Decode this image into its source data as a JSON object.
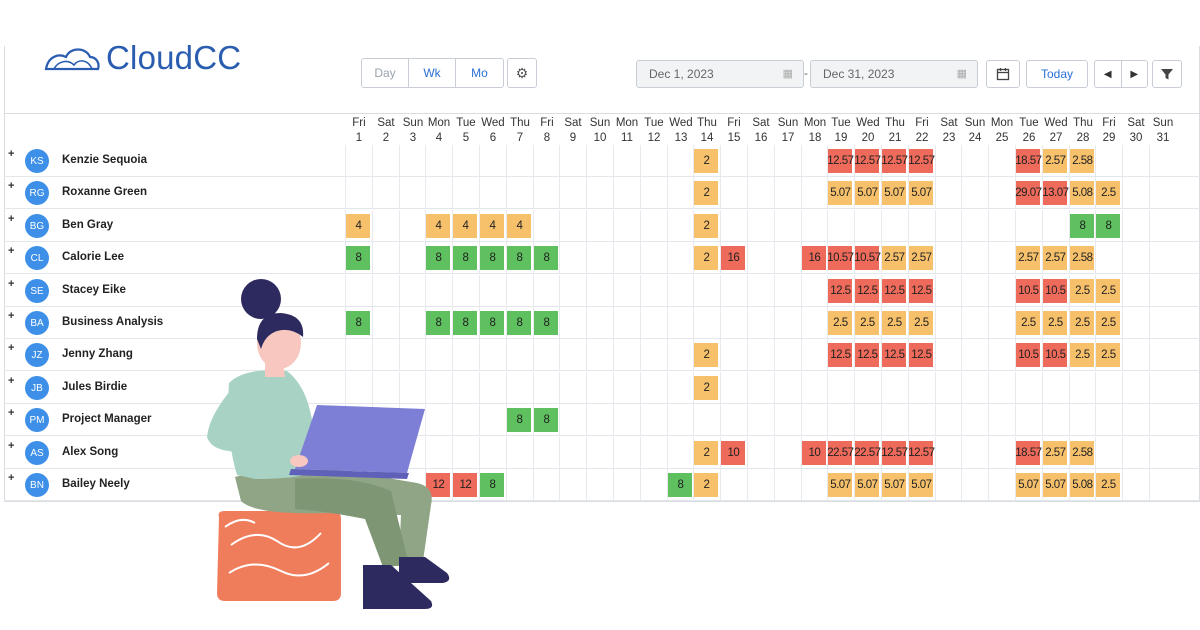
{
  "brand": {
    "name": "CloudCC",
    "color": "#2a5db0",
    "icon": "cloud-logo-icon"
  },
  "views": [
    {
      "label": "Day",
      "active": false
    },
    {
      "label": "Wk",
      "active": true
    },
    {
      "label": "Mo",
      "active": true
    }
  ],
  "settings_icon": "gear-icon",
  "date_range": {
    "start": "Dec 1, 2023",
    "separator": "-",
    "end": "Dec 31, 2023"
  },
  "toolbar": {
    "today_label": "Today",
    "calendar_icon": "calendar-icon",
    "prev_icon": "chevron-left-icon",
    "next_icon": "chevron-right-icon",
    "filter_icon": "filter-icon"
  },
  "days": [
    {
      "dow": "Fri",
      "d": "1"
    },
    {
      "dow": "Sat",
      "d": "2"
    },
    {
      "dow": "Sun",
      "d": "3"
    },
    {
      "dow": "Mon",
      "d": "4"
    },
    {
      "dow": "Tue",
      "d": "5"
    },
    {
      "dow": "Wed",
      "d": "6"
    },
    {
      "dow": "Thu",
      "d": "7"
    },
    {
      "dow": "Fri",
      "d": "8"
    },
    {
      "dow": "Sat",
      "d": "9"
    },
    {
      "dow": "Sun",
      "d": "10"
    },
    {
      "dow": "Mon",
      "d": "11"
    },
    {
      "dow": "Tue",
      "d": "12"
    },
    {
      "dow": "Wed",
      "d": "13"
    },
    {
      "dow": "Thu",
      "d": "14"
    },
    {
      "dow": "Fri",
      "d": "15"
    },
    {
      "dow": "Sat",
      "d": "16"
    },
    {
      "dow": "Sun",
      "d": "17"
    },
    {
      "dow": "Mon",
      "d": "18"
    },
    {
      "dow": "Tue",
      "d": "19"
    },
    {
      "dow": "Wed",
      "d": "20"
    },
    {
      "dow": "Thu",
      "d": "21"
    },
    {
      "dow": "Fri",
      "d": "22"
    },
    {
      "dow": "Sat",
      "d": "23"
    },
    {
      "dow": "Sun",
      "d": "24"
    },
    {
      "dow": "Mon",
      "d": "25"
    },
    {
      "dow": "Tue",
      "d": "26"
    },
    {
      "dow": "Wed",
      "d": "27"
    },
    {
      "dow": "Thu",
      "d": "28"
    },
    {
      "dow": "Fri",
      "d": "29"
    },
    {
      "dow": "Sat",
      "d": "30"
    },
    {
      "dow": "Sun",
      "d": "31"
    }
  ],
  "status_colors": {
    "red": "#ee6a5a",
    "orange": "#f7c16c",
    "green": "#5fc05f"
  },
  "resources": [
    {
      "initials": "KS",
      "name": "Kenzie Sequoia",
      "cells": [
        {
          "day": 14,
          "v": "2",
          "c": "orange"
        },
        {
          "day": 19,
          "v": "12.57",
          "c": "red"
        },
        {
          "day": 20,
          "v": "12.57",
          "c": "red"
        },
        {
          "day": 21,
          "v": "12.57",
          "c": "red"
        },
        {
          "day": 22,
          "v": "12.57",
          "c": "red"
        },
        {
          "day": 26,
          "v": "18.57",
          "c": "red"
        },
        {
          "day": 27,
          "v": "2.57",
          "c": "orange"
        },
        {
          "day": 28,
          "v": "2.58",
          "c": "orange"
        }
      ]
    },
    {
      "initials": "RG",
      "name": "Roxanne Green",
      "cells": [
        {
          "day": 14,
          "v": "2",
          "c": "orange"
        },
        {
          "day": 19,
          "v": "5.07",
          "c": "orange"
        },
        {
          "day": 20,
          "v": "5.07",
          "c": "orange"
        },
        {
          "day": 21,
          "v": "5.07",
          "c": "orange"
        },
        {
          "day": 22,
          "v": "5.07",
          "c": "orange"
        },
        {
          "day": 26,
          "v": "29.07",
          "c": "red"
        },
        {
          "day": 27,
          "v": "13.07",
          "c": "red"
        },
        {
          "day": 28,
          "v": "5.08",
          "c": "orange"
        },
        {
          "day": 29,
          "v": "2.5",
          "c": "orange"
        }
      ]
    },
    {
      "initials": "BG",
      "name": "Ben Gray",
      "cells": [
        {
          "day": 1,
          "v": "4",
          "c": "orange"
        },
        {
          "day": 4,
          "v": "4",
          "c": "orange"
        },
        {
          "day": 5,
          "v": "4",
          "c": "orange"
        },
        {
          "day": 6,
          "v": "4",
          "c": "orange"
        },
        {
          "day": 7,
          "v": "4",
          "c": "orange"
        },
        {
          "day": 14,
          "v": "2",
          "c": "orange"
        },
        {
          "day": 28,
          "v": "8",
          "c": "green"
        },
        {
          "day": 29,
          "v": "8",
          "c": "green"
        }
      ]
    },
    {
      "initials": "CL",
      "name": "Calorie Lee",
      "cells": [
        {
          "day": 1,
          "v": "8",
          "c": "green"
        },
        {
          "day": 4,
          "v": "8",
          "c": "green"
        },
        {
          "day": 5,
          "v": "8",
          "c": "green"
        },
        {
          "day": 6,
          "v": "8",
          "c": "green"
        },
        {
          "day": 7,
          "v": "8",
          "c": "green"
        },
        {
          "day": 8,
          "v": "8",
          "c": "green"
        },
        {
          "day": 14,
          "v": "2",
          "c": "orange"
        },
        {
          "day": 15,
          "v": "16",
          "c": "red"
        },
        {
          "day": 18,
          "v": "16",
          "c": "red"
        },
        {
          "day": 19,
          "v": "10.57",
          "c": "red"
        },
        {
          "day": 20,
          "v": "10.57",
          "c": "red"
        },
        {
          "day": 21,
          "v": "2.57",
          "c": "orange"
        },
        {
          "day": 22,
          "v": "2.57",
          "c": "orange"
        },
        {
          "day": 26,
          "v": "2.57",
          "c": "orange"
        },
        {
          "day": 27,
          "v": "2.57",
          "c": "orange"
        },
        {
          "day": 28,
          "v": "2.58",
          "c": "orange"
        }
      ]
    },
    {
      "initials": "SE",
      "name": "Stacey Eike",
      "cells": [
        {
          "day": 19,
          "v": "12.5",
          "c": "red"
        },
        {
          "day": 20,
          "v": "12.5",
          "c": "red"
        },
        {
          "day": 21,
          "v": "12.5",
          "c": "red"
        },
        {
          "day": 22,
          "v": "12.5",
          "c": "red"
        },
        {
          "day": 26,
          "v": "10.5",
          "c": "red"
        },
        {
          "day": 27,
          "v": "10.5",
          "c": "red"
        },
        {
          "day": 28,
          "v": "2.5",
          "c": "orange"
        },
        {
          "day": 29,
          "v": "2.5",
          "c": "orange"
        }
      ]
    },
    {
      "initials": "BA",
      "name": "Business Analysis",
      "cells": [
        {
          "day": 1,
          "v": "8",
          "c": "green"
        },
        {
          "day": 4,
          "v": "8",
          "c": "green"
        },
        {
          "day": 5,
          "v": "8",
          "c": "green"
        },
        {
          "day": 6,
          "v": "8",
          "c": "green"
        },
        {
          "day": 7,
          "v": "8",
          "c": "green"
        },
        {
          "day": 8,
          "v": "8",
          "c": "green"
        },
        {
          "day": 19,
          "v": "2.5",
          "c": "orange"
        },
        {
          "day": 20,
          "v": "2.5",
          "c": "orange"
        },
        {
          "day": 21,
          "v": "2.5",
          "c": "orange"
        },
        {
          "day": 22,
          "v": "2.5",
          "c": "orange"
        },
        {
          "day": 26,
          "v": "2.5",
          "c": "orange"
        },
        {
          "day": 27,
          "v": "2.5",
          "c": "orange"
        },
        {
          "day": 28,
          "v": "2.5",
          "c": "orange"
        },
        {
          "day": 29,
          "v": "2.5",
          "c": "orange"
        }
      ]
    },
    {
      "initials": "JZ",
      "name": "Jenny Zhang",
      "cells": [
        {
          "day": 14,
          "v": "2",
          "c": "orange"
        },
        {
          "day": 19,
          "v": "12.5",
          "c": "red"
        },
        {
          "day": 20,
          "v": "12.5",
          "c": "red"
        },
        {
          "day": 21,
          "v": "12.5",
          "c": "red"
        },
        {
          "day": 22,
          "v": "12.5",
          "c": "red"
        },
        {
          "day": 26,
          "v": "10.5",
          "c": "red"
        },
        {
          "day": 27,
          "v": "10.5",
          "c": "red"
        },
        {
          "day": 28,
          "v": "2.5",
          "c": "orange"
        },
        {
          "day": 29,
          "v": "2.5",
          "c": "orange"
        }
      ]
    },
    {
      "initials": "JB",
      "name": "Jules Birdie",
      "cells": [
        {
          "day": 14,
          "v": "2",
          "c": "orange"
        }
      ]
    },
    {
      "initials": "PM",
      "name": "Project Manager",
      "cells": [
        {
          "day": 7,
          "v": "8",
          "c": "green"
        },
        {
          "day": 8,
          "v": "8",
          "c": "green"
        }
      ]
    },
    {
      "initials": "AS",
      "name": "Alex Song",
      "cells": [
        {
          "day": 14,
          "v": "2",
          "c": "orange"
        },
        {
          "day": 15,
          "v": "10",
          "c": "red"
        },
        {
          "day": 18,
          "v": "10",
          "c": "red"
        },
        {
          "day": 19,
          "v": "22.57",
          "c": "red"
        },
        {
          "day": 20,
          "v": "22.57",
          "c": "red"
        },
        {
          "day": 21,
          "v": "12.57",
          "c": "red"
        },
        {
          "day": 22,
          "v": "12.57",
          "c": "red"
        },
        {
          "day": 26,
          "v": "18.57",
          "c": "red"
        },
        {
          "day": 27,
          "v": "2.57",
          "c": "orange"
        },
        {
          "day": 28,
          "v": "2.58",
          "c": "orange"
        }
      ]
    },
    {
      "initials": "BN",
      "name": "Bailey Neely",
      "cells": [
        {
          "day": 4,
          "v": "12",
          "c": "red"
        },
        {
          "day": 5,
          "v": "12",
          "c": "red"
        },
        {
          "day": 6,
          "v": "8",
          "c": "green"
        },
        {
          "day": 13,
          "v": "8",
          "c": "green"
        },
        {
          "day": 14,
          "v": "2",
          "c": "orange"
        },
        {
          "day": 19,
          "v": "5.07",
          "c": "orange"
        },
        {
          "day": 20,
          "v": "5.07",
          "c": "orange"
        },
        {
          "day": 21,
          "v": "5.07",
          "c": "orange"
        },
        {
          "day": 22,
          "v": "5.07",
          "c": "orange"
        },
        {
          "day": 26,
          "v": "5.07",
          "c": "orange"
        },
        {
          "day": 27,
          "v": "5.07",
          "c": "orange"
        },
        {
          "day": 28,
          "v": "5.08",
          "c": "orange"
        },
        {
          "day": 29,
          "v": "2.5",
          "c": "orange"
        }
      ]
    }
  ],
  "row_expand_icon": "plus-icon"
}
